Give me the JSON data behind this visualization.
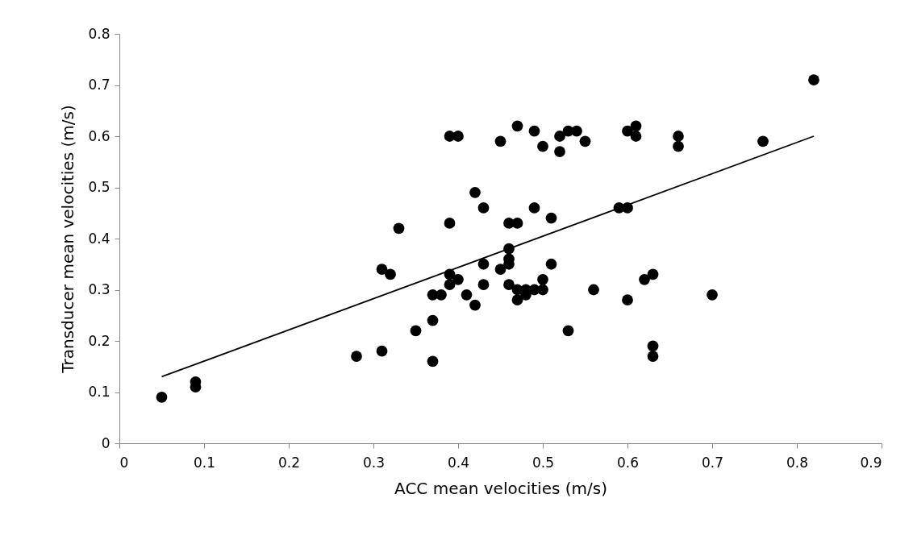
{
  "chart_data": {
    "type": "scatter",
    "xlabel": "ACC mean velocities (m/s)",
    "ylabel": "Transducer mean velocities (m/s)",
    "xlim": [
      0,
      0.9
    ],
    "xticks": [
      0,
      0.1,
      0.2,
      0.3,
      0.4,
      0.5,
      0.6,
      0.7,
      0.8,
      0.9
    ],
    "ylim": [
      0,
      0.8
    ],
    "yticks": [
      0,
      0.1,
      0.2,
      0.3,
      0.4,
      0.5,
      0.6,
      0.7,
      0.8
    ],
    "grid": false,
    "series": [
      {
        "color": "#000000",
        "marker": "circle",
        "x": [
          0.05,
          0.09,
          0.09,
          0.28,
          0.31,
          0.31,
          0.32,
          0.33,
          0.35,
          0.37,
          0.37,
          0.37,
          0.38,
          0.39,
          0.39,
          0.39,
          0.39,
          0.4,
          0.4,
          0.41,
          0.42,
          0.42,
          0.43,
          0.43,
          0.43,
          0.45,
          0.45,
          0.46,
          0.46,
          0.46,
          0.46,
          0.46,
          0.47,
          0.47,
          0.47,
          0.47,
          0.48,
          0.48,
          0.49,
          0.49,
          0.49,
          0.5,
          0.5,
          0.5,
          0.51,
          0.51,
          0.52,
          0.52,
          0.53,
          0.53,
          0.54,
          0.55,
          0.56,
          0.59,
          0.6,
          0.6,
          0.6,
          0.61,
          0.61,
          0.62,
          0.63,
          0.63,
          0.63,
          0.66,
          0.66,
          0.7,
          0.76,
          0.82
        ],
        "values": [
          0.09,
          0.12,
          0.11,
          0.17,
          0.18,
          0.34,
          0.33,
          0.42,
          0.22,
          0.24,
          0.16,
          0.29,
          0.29,
          0.33,
          0.31,
          0.43,
          0.6,
          0.6,
          0.32,
          0.29,
          0.27,
          0.49,
          0.46,
          0.35,
          0.31,
          0.59,
          0.34,
          0.43,
          0.38,
          0.36,
          0.35,
          0.31,
          0.62,
          0.43,
          0.3,
          0.28,
          0.29,
          0.3,
          0.61,
          0.46,
          0.3,
          0.58,
          0.32,
          0.3,
          0.44,
          0.35,
          0.6,
          0.57,
          0.61,
          0.22,
          0.61,
          0.59,
          0.3,
          0.46,
          0.46,
          0.61,
          0.28,
          0.62,
          0.6,
          0.32,
          0.33,
          0.19,
          0.17,
          0.6,
          0.58,
          0.29,
          0.59,
          0.71
        ]
      },
      {
        "type": "line",
        "color": "#000000",
        "line_style": "solid",
        "marker": "none",
        "x": [
          0.05,
          0.82
        ],
        "values": [
          0.13,
          0.6
        ]
      }
    ]
  }
}
